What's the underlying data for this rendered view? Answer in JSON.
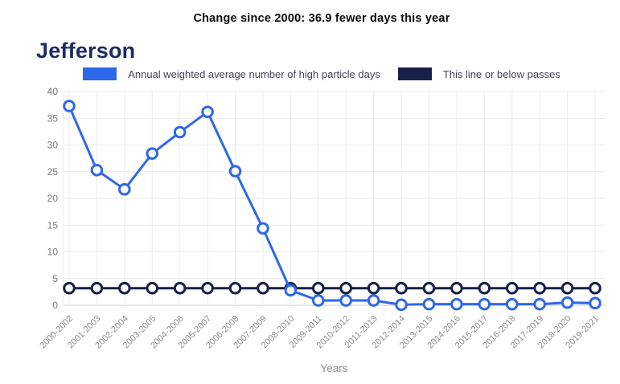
{
  "title": "Change since 2000: 36.9 fewer days this year",
  "heading": "Jefferson",
  "legend": [
    {
      "label": "Annual weighted average number of high particle days",
      "color": "#2d68e8"
    },
    {
      "label": "This line or below passes",
      "color": "#172048"
    }
  ],
  "chart_data": {
    "type": "line",
    "title": "Change since 2000: 36.9 fewer days this year",
    "categories": [
      "2000-2002",
      "2001-2003",
      "2002-2004",
      "2003-2005",
      "2004-2006",
      "2005-2007",
      "2006-2008",
      "2007-2009",
      "2008-2010",
      "2009-2011",
      "2010-2012",
      "2011-2013",
      "2012-2014",
      "2013-2015",
      "2014-2016",
      "2015-2017",
      "2016-2018",
      "2017-2019",
      "2018-2020",
      "2019-2021"
    ],
    "series": [
      {
        "name": "Annual weighted average number of high particle days",
        "color": "#2d68e8",
        "marker": "circle-open",
        "values": [
          37.3,
          25.3,
          21.7,
          28.4,
          32.4,
          36.2,
          25.1,
          14.4,
          2.8,
          0.9,
          0.9,
          0.9,
          0.1,
          0.2,
          0.2,
          0.2,
          0.2,
          0.2,
          0.5,
          0.4
        ]
      },
      {
        "name": "This line or below passes",
        "color": "#172048",
        "marker": "circle-open",
        "values": [
          3.2,
          3.2,
          3.2,
          3.2,
          3.2,
          3.2,
          3.2,
          3.2,
          3.2,
          3.2,
          3.2,
          3.2,
          3.2,
          3.2,
          3.2,
          3.2,
          3.2,
          3.2,
          3.2,
          3.2
        ]
      }
    ],
    "xlabel": "Years",
    "ylabel": "",
    "ylim": [
      0,
      40
    ],
    "yticks": [
      0,
      5,
      10,
      15,
      20,
      25,
      30,
      35,
      40
    ],
    "grid": true,
    "legend_position": "top",
    "x_tick_rotation": -45
  },
  "colors": {
    "heading": "#1d2b63",
    "title_text": "#0a0a0a",
    "y_tick_label": "#7a7a7a",
    "x_tick_label": "#8e8e8e",
    "gridline": "#e9e9e9",
    "baseline": "#cfcfcf",
    "background": "#ffffff"
  }
}
